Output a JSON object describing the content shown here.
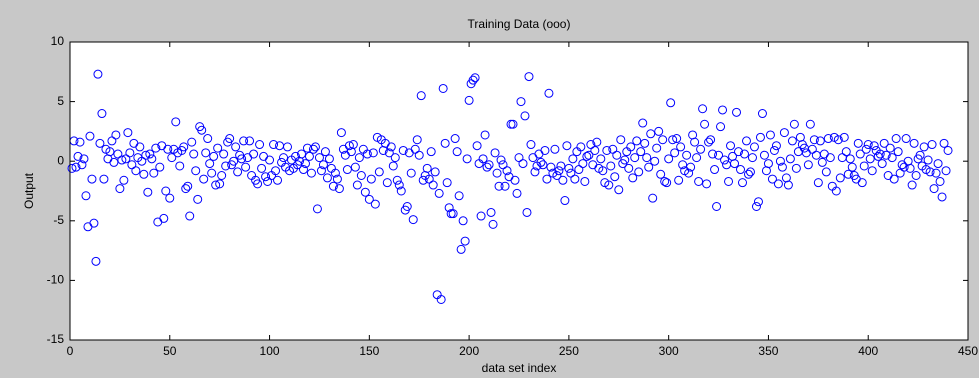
{
  "chart_data": {
    "type": "scatter",
    "title": "Training Data (ooo)",
    "x_label": "data set index",
    "y_label": "Output",
    "xlim": [
      0,
      450
    ],
    "xticks": [
      0,
      50,
      100,
      150,
      200,
      250,
      300,
      350,
      400,
      450
    ],
    "ylim": [
      -15,
      10
    ],
    "yticks": [
      -15,
      -10,
      -5,
      0,
      5,
      10
    ],
    "series": [
      {
        "color": "#0000ff",
        "x": [
          1,
          2,
          3,
          4,
          5,
          6,
          7,
          8,
          9,
          10,
          11,
          12,
          13,
          14,
          15,
          16,
          17,
          18,
          19,
          20,
          21,
          22,
          23,
          24,
          25,
          26,
          27,
          28,
          29,
          30,
          31,
          32,
          33,
          34,
          35,
          36,
          37,
          38,
          39,
          40,
          41,
          42,
          43,
          44,
          45,
          46,
          47,
          48,
          49,
          50,
          51,
          52,
          53,
          54,
          55,
          56,
          57,
          58,
          59,
          60,
          61,
          62,
          63,
          64,
          65,
          66,
          67,
          68,
          69,
          70,
          71,
          72,
          73,
          74,
          75,
          76,
          77,
          78,
          79,
          80,
          81,
          82,
          83,
          84,
          85,
          86,
          87,
          88,
          89,
          90,
          91,
          92,
          93,
          94,
          95,
          96,
          97,
          98,
          99,
          100,
          101,
          102,
          103,
          104,
          105,
          106,
          107,
          108,
          109,
          110,
          111,
          112,
          113,
          114,
          115,
          116,
          117,
          118,
          119,
          120,
          121,
          122,
          123,
          124,
          125,
          126,
          127,
          128,
          129,
          130,
          131,
          132,
          133,
          134,
          135,
          136,
          137,
          138,
          139,
          140,
          141,
          142,
          143,
          144,
          145,
          146,
          147,
          148,
          149,
          150,
          151,
          152,
          153,
          154,
          155,
          156,
          157,
          158,
          159,
          160,
          161,
          162,
          163,
          164,
          165,
          166,
          167,
          168,
          169,
          170,
          171,
          172,
          173,
          174,
          175,
          176,
          177,
          178,
          179,
          180,
          181,
          182,
          183,
          184,
          185,
          186,
          187,
          188,
          189,
          190,
          191,
          192,
          193,
          194,
          195,
          196,
          197,
          198,
          199,
          200,
          201,
          202,
          203,
          204,
          205,
          206,
          207,
          208,
          209,
          210,
          211,
          212,
          213,
          214,
          215,
          216,
          217,
          218,
          219,
          220,
          221,
          222,
          223,
          224,
          225,
          226,
          227,
          228,
          229,
          230,
          231,
          232,
          233,
          234,
          235,
          236,
          237,
          238,
          239,
          240,
          241,
          242,
          243,
          244,
          245,
          246,
          247,
          248,
          249,
          250,
          251,
          252,
          253,
          254,
          255,
          256,
          257,
          258,
          259,
          260,
          261,
          262,
          263,
          264,
          265,
          266,
          267,
          268,
          269,
          270,
          271,
          272,
          273,
          274,
          275,
          276,
          277,
          278,
          279,
          280,
          281,
          282,
          283,
          284,
          285,
          286,
          287,
          288,
          289,
          290,
          291,
          292,
          293,
          294,
          295,
          296,
          297,
          298,
          299,
          300,
          301,
          302,
          303,
          304,
          305,
          306,
          307,
          308,
          309,
          310,
          311,
          312,
          313,
          314,
          315,
          316,
          317,
          318,
          319,
          320,
          321,
          322,
          323,
          324,
          325,
          326,
          327,
          328,
          329,
          330,
          331,
          332,
          333,
          334,
          335,
          336,
          337,
          338,
          339,
          340,
          341,
          342,
          343,
          344,
          345,
          346,
          347,
          348,
          349,
          350,
          351,
          352,
          353,
          354,
          355,
          356,
          357,
          358,
          359,
          360,
          361,
          362,
          363,
          364,
          365,
          366,
          367,
          368,
          369,
          370,
          371,
          372,
          373,
          374,
          375,
          376,
          377,
          378,
          379,
          380,
          381,
          382,
          383,
          384,
          385,
          386,
          387,
          388,
          389,
          390,
          391,
          392,
          393,
          394,
          395,
          396,
          397,
          398,
          399,
          400,
          401,
          402,
          403,
          404,
          405,
          406,
          407,
          408,
          409,
          410,
          411,
          412,
          413,
          414,
          415,
          416,
          417,
          418,
          419,
          420,
          421,
          422,
          423,
          424,
          425,
          426,
          427,
          428,
          429,
          430,
          431,
          432,
          433,
          434,
          435,
          436,
          437,
          438,
          439,
          440
        ],
        "values": [
          -0.6,
          1.7,
          -0.5,
          0.4,
          1.6,
          -0.3,
          0.2,
          -2.9,
          -5.5,
          2.1,
          -1.5,
          -5.2,
          -8.4,
          7.3,
          1.5,
          4.0,
          -1.5,
          1.0,
          0.2,
          0.8,
          1.7,
          -0.1,
          2.2,
          0.6,
          -2.3,
          0.1,
          -1.6,
          0.2,
          2.4,
          0.7,
          -0.3,
          1.5,
          -0.8,
          0.3,
          1.2,
          0.0,
          -1.1,
          0.5,
          -2.6,
          0.6,
          0.2,
          -1.0,
          1.1,
          -5.1,
          -0.5,
          1.3,
          -4.8,
          -2.5,
          1.0,
          -3.1,
          0.3,
          1.0,
          3.3,
          0.7,
          -0.4,
          0.9,
          1.2,
          -2.3,
          -2.1,
          -4.6,
          1.6,
          0.6,
          -0.8,
          -3.2,
          2.9,
          2.6,
          -1.5,
          0.7,
          1.9,
          -0.2,
          -1.0,
          0.4,
          -2.0,
          1.1,
          -1.9,
          -1.2,
          0.6,
          -0.4,
          1.6,
          1.9,
          -0.3,
          0.0,
          1.2,
          -0.9,
          0.5,
          0.2,
          1.7,
          -0.5,
          0.3,
          1.7,
          -1.2,
          0.6,
          -1.6,
          -1.9,
          1.4,
          -0.6,
          0.4,
          -1.3,
          -1.7,
          0.1,
          -1.2,
          1.4,
          -0.8,
          -1.6,
          1.3,
          -0.1,
          0.3,
          -0.5,
          1.2,
          -0.8,
          0.1,
          -0.6,
          0.4,
          -0.3,
          0.0,
          0.6,
          -0.7,
          -0.2,
          1.1,
          0.4,
          -1.0,
          1.0,
          1.2,
          -4.0,
          0.3,
          -0.8,
          -0.3,
          0.8,
          -1.4,
          0.2,
          -0.6,
          -2.1,
          -1.0,
          -1.5,
          -2.3,
          2.4,
          1.0,
          0.5,
          -0.7,
          1.3,
          0.8,
          1.4,
          -0.5,
          -2.0,
          0.3,
          -1.2,
          1.0,
          -2.6,
          0.6,
          -3.2,
          -1.5,
          0.7,
          -3.6,
          2.0,
          -0.9,
          1.8,
          0.9,
          1.5,
          -1.8,
          0.7,
          1.2,
          -0.4,
          0.3,
          -1.6,
          -2.0,
          -2.5,
          0.9,
          -4.1,
          -3.8,
          0.7,
          -1.0,
          -4.9,
          1.0,
          1.8,
          0.5,
          5.5,
          -1.6,
          -1.2,
          -0.6,
          -1.5,
          0.8,
          -2.0,
          -0.9,
          -11.2,
          -2.7,
          -11.6,
          6.1,
          1.5,
          -1.8,
          -3.9,
          -4.4,
          -4.4,
          1.9,
          0.8,
          -2.9,
          -7.4,
          -5.0,
          -6.7,
          0.2,
          5.1,
          6.5,
          6.8,
          7.0,
          1.3,
          -0.2,
          -4.6,
          0.2,
          2.2,
          -0.5,
          -0.3,
          -4.3,
          -5.3,
          0.7,
          -1.0,
          -2.1,
          0.1,
          -0.3,
          -2.1,
          -0.8,
          -1.3,
          3.1,
          3.1,
          -1.6,
          -2.7,
          0.3,
          5.0,
          -0.2,
          3.8,
          -4.3,
          7.1,
          1.4,
          0.3,
          -0.9,
          -0.4,
          0.6,
          -0.1,
          -0.3,
          0.9,
          -1.5,
          5.7,
          -0.5,
          -1.0,
          1.0,
          -1.2,
          -0.8,
          -0.4,
          -1.6,
          -3.3,
          1.3,
          -0.6,
          -1.0,
          0.2,
          -1.5,
          0.8,
          -0.7,
          1.2,
          -0.2,
          -1.7,
          0.4,
          0.5,
          1.4,
          -0.3,
          0.9,
          1.6,
          -0.6,
          0.2,
          -0.8,
          -1.8,
          0.9,
          -2.0,
          -0.4,
          1.0,
          -1.3,
          0.5,
          -2.4,
          1.8,
          -0.2,
          0.1,
          0.8,
          -0.6,
          1.2,
          -1.4,
          0.3,
          1.7,
          -0.9,
          0.8,
          3.2,
          1.5,
          0.3,
          -0.5,
          2.3,
          -3.1,
          0.0,
          1.1,
          2.5,
          -1.1,
          1.8,
          -1.7,
          -1.8,
          0.2,
          4.9,
          1.8,
          0.7,
          1.9,
          -1.6,
          1.2,
          -0.3,
          -0.8,
          0.5,
          -1.0,
          -0.5,
          2.2,
          1.6,
          0.3,
          -1.7,
          1.0,
          4.4,
          3.1,
          -1.9,
          1.6,
          1.8,
          0.6,
          -0.7,
          -3.8,
          0.5,
          2.9,
          4.3,
          0.1,
          -0.3,
          -1.7,
          1.3,
          0.4,
          -0.2,
          4.1,
          0.8,
          -0.7,
          -1.8,
          0.6,
          1.7,
          -1.1,
          -0.9,
          0.3,
          1.2,
          -3.8,
          -3.4,
          2.0,
          4.0,
          0.5,
          -0.8,
          -0.2,
          2.2,
          -1.5,
          0.9,
          1.3,
          -1.9,
          0.0,
          -0.5,
          2.4,
          -1.4,
          -2.0,
          0.2,
          1.7,
          3.1,
          -0.6,
          0.8,
          2.0,
          1.4,
          1.1,
          0.7,
          -0.3,
          3.1,
          1.0,
          1.8,
          0.5,
          -1.8,
          1.7,
          -0.1,
          0.6,
          -0.9,
          1.9,
          0.3,
          -2.1,
          2.0,
          -2.5,
          1.8,
          -1.4,
          0.3,
          2.0,
          0.8,
          -1.1,
          0.2,
          -0.5,
          -1.2,
          -1.5,
          1.5,
          0.6,
          -1.8,
          -0.4,
          1.0,
          1.4,
          0.2,
          -0.8,
          1.3,
          0.9,
          0.4,
          0.6,
          -0.2,
          1.5,
          0.5,
          -1.2,
          1.1,
          0.3,
          -1.5,
          1.9,
          0.8,
          -1.0,
          -0.3,
          -0.5,
          1.9,
          0.0,
          -0.6,
          -2.0,
          1.5,
          -1.2,
          0.2,
          0.5,
          -0.4,
          1.2,
          -0.7,
          0.1,
          -0.9,
          1.4,
          -2.3,
          -1.0,
          -0.2,
          -1.7,
          -3.0,
          1.5,
          -0.8,
          0.9
        ]
      }
    ]
  }
}
